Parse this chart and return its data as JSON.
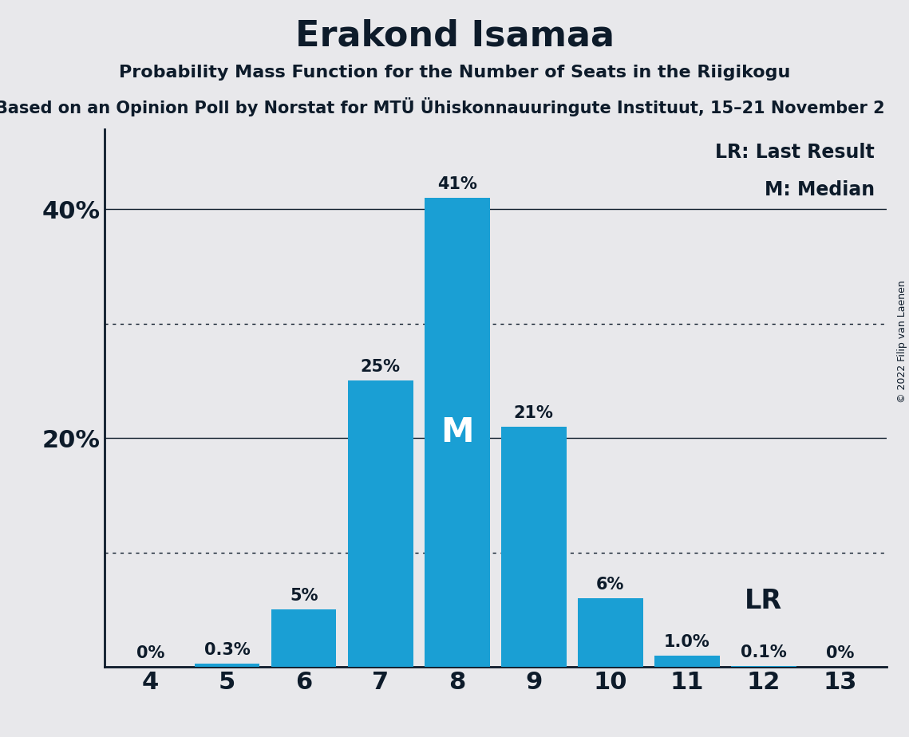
{
  "title": "Erakond Isamaa",
  "subtitle": "Probability Mass Function for the Number of Seats in the Riigikogu",
  "source_line": "Based on an Opinion Poll by Norstat for MTÜ Ühiskonnauuringute Instituut, 15–21 November 2",
  "copyright": "© 2022 Filip van Laenen",
  "categories": [
    4,
    5,
    6,
    7,
    8,
    9,
    10,
    11,
    12,
    13
  ],
  "values": [
    0.0,
    0.3,
    5.0,
    25.0,
    41.0,
    21.0,
    6.0,
    1.0,
    0.1,
    0.0
  ],
  "bar_color": "#1a9fd4",
  "background_color": "#e8e8eb",
  "median_seat": 8,
  "lr_seat": 12,
  "yticks_labeled": [
    20,
    40
  ],
  "yticks_dotted": [
    10,
    30
  ],
  "yticks_solid": [
    0,
    20,
    40
  ],
  "ylim": [
    0,
    47
  ],
  "legend_lr": "LR: Last Result",
  "legend_m": "M: Median",
  "bar_labels": [
    "0%",
    "0.3%",
    "5%",
    "25%",
    "41%",
    "21%",
    "6%",
    "1.0%",
    "0.1%",
    "0%"
  ],
  "axis_color": "#0d1b2a",
  "title_fontsize": 32,
  "subtitle_fontsize": 16,
  "source_fontsize": 15,
  "label_fontsize": 15,
  "tick_fontsize": 22,
  "legend_fontsize": 17,
  "copyright_fontsize": 9
}
